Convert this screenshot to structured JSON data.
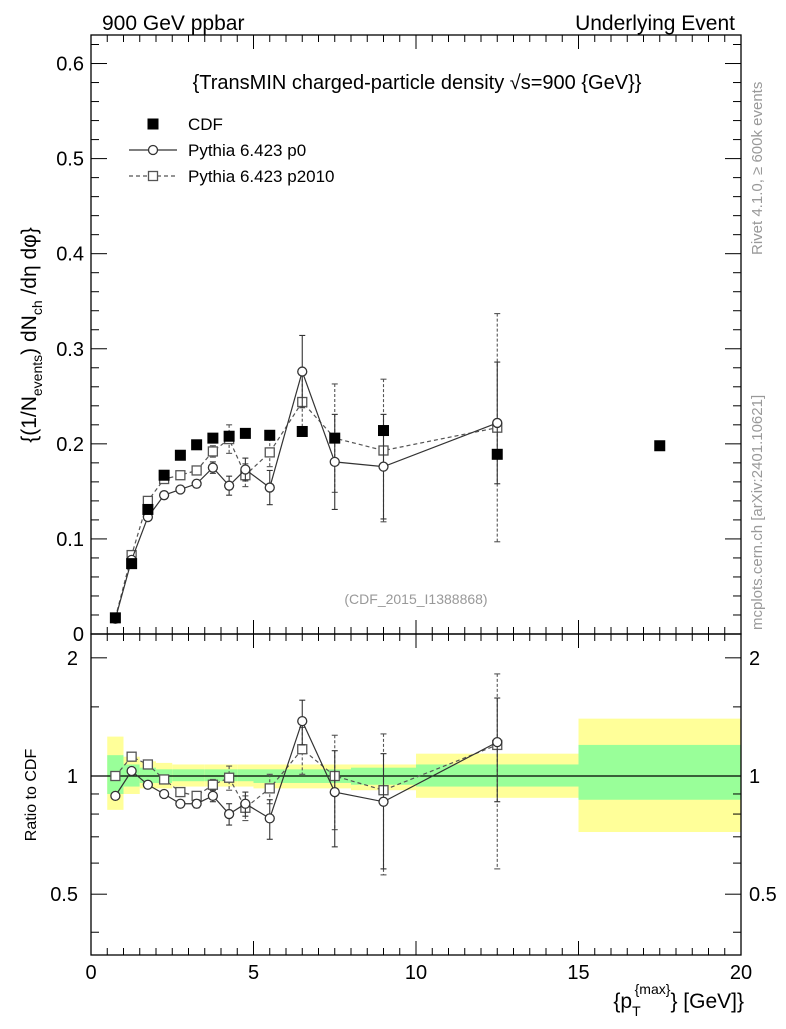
{
  "header": {
    "left": "900 GeV ppbar",
    "right": "Underlying Event"
  },
  "side_text": {
    "rivet": "Rivet 4.1.0, ≥ 600k events",
    "mcplots": "mcplots.cern.ch [arXiv:2401.10621]"
  },
  "colors": {
    "cdf": "#000000",
    "p0": "#333333",
    "p2010": "#555555",
    "band_outer": "#ffff99",
    "band_inner": "#99ff99",
    "watermark": "#999999"
  },
  "chart_data": {
    "type": "scatter",
    "title": "{TransMIN charged-particle density √s=900 {GeV}}",
    "watermark": "(CDF_2015_I1388868)",
    "xlabel": "{p_T^{max}} [GeV]",
    "xlabel_main": "{p",
    "xlabel_sub": "T",
    "xlabel_sup": "{max}",
    "xlabel_tail": "} [GeV]}",
    "ylabel": "{(1/N_events) dN_ch /dη dφ}",
    "ylabel_parts": {
      "a": "{(1/N",
      "b": "events",
      "c": ") dN",
      "d": "ch",
      "e": " /dη dφ}"
    },
    "ratio_ylabel": "Ratio to CDF",
    "xlim": [
      0,
      20
    ],
    "ylim": [
      0,
      0.63
    ],
    "ratio_ylim": [
      0.35,
      2.3
    ],
    "x_ticks": [
      0,
      5,
      10,
      15,
      20
    ],
    "x_tick_labels": [
      "0",
      "5",
      "10",
      "15",
      "20"
    ],
    "y_ticks": [
      0,
      0.1,
      0.2,
      0.3,
      0.4,
      0.5,
      0.6
    ],
    "y_tick_labels": [
      "0",
      "0.1",
      "0.2",
      "0.3",
      "0.4",
      "0.5",
      "0.6"
    ],
    "ratio_ticks": [
      0.5,
      1,
      2
    ],
    "ratio_tick_labels": [
      "0.5",
      "1",
      "2"
    ],
    "legend": [
      {
        "key": "cdf",
        "label": "CDF"
      },
      {
        "key": "p0",
        "label": "Pythia 6.423 p0"
      },
      {
        "key": "p2010",
        "label": "Pythia 6.423 p2010"
      }
    ],
    "series": [
      {
        "name": "CDF",
        "key": "cdf",
        "x": [
          0.75,
          1.25,
          1.75,
          2.25,
          2.75,
          3.25,
          3.75,
          4.25,
          4.75,
          5.5,
          6.5,
          7.5,
          9.0,
          12.5,
          17.5
        ],
        "y": [
          0.017,
          0.074,
          0.131,
          0.167,
          0.188,
          0.199,
          0.206,
          0.208,
          0.211,
          0.209,
          0.213,
          0.206,
          0.214,
          0.189,
          0.198
        ]
      },
      {
        "name": "Pythia 6.423 p0",
        "key": "p0",
        "x": [
          0.75,
          1.25,
          1.75,
          2.25,
          2.75,
          3.25,
          3.75,
          4.25,
          4.75,
          5.5,
          6.5,
          7.5,
          9.0,
          12.5
        ],
        "y": [
          0.016,
          0.078,
          0.123,
          0.146,
          0.152,
          0.158,
          0.175,
          0.156,
          0.173,
          0.154,
          0.276,
          0.181,
          0.176,
          0.222
        ],
        "err": [
          0.002,
          0.003,
          0.003,
          0.003,
          0.003,
          0.004,
          0.006,
          0.01,
          0.012,
          0.018,
          0.038,
          0.05,
          0.055,
          0.064
        ]
      },
      {
        "name": "Pythia 6.423 p2010",
        "key": "p2010",
        "x": [
          0.75,
          1.25,
          1.75,
          2.25,
          2.75,
          3.25,
          3.75,
          4.25,
          4.75,
          5.5,
          6.5,
          7.5,
          9.0,
          12.5
        ],
        "y": [
          0.017,
          0.083,
          0.14,
          0.163,
          0.167,
          0.172,
          0.192,
          0.205,
          0.167,
          0.191,
          0.244,
          0.206,
          0.193,
          0.217
        ],
        "err": [
          0.002,
          0.003,
          0.003,
          0.003,
          0.003,
          0.004,
          0.006,
          0.015,
          0.012,
          0.015,
          0.035,
          0.057,
          0.075,
          0.12
        ]
      }
    ],
    "ratio_series": [
      {
        "key": "p0",
        "x": [
          0.75,
          1.25,
          1.75,
          2.25,
          2.75,
          3.25,
          3.75,
          4.25,
          4.75,
          5.5,
          6.5,
          7.5,
          9.0,
          12.5
        ],
        "y": [
          0.89,
          1.03,
          0.95,
          0.9,
          0.85,
          0.85,
          0.89,
          0.8,
          0.85,
          0.78,
          1.38,
          0.91,
          0.86,
          1.22
        ],
        "err": [
          0.01,
          0.015,
          0.015,
          0.015,
          0.015,
          0.02,
          0.03,
          0.05,
          0.06,
          0.09,
          0.18,
          0.25,
          0.28,
          0.36
        ]
      },
      {
        "key": "p2010",
        "x": [
          0.75,
          1.25,
          1.75,
          2.25,
          2.75,
          3.25,
          3.75,
          4.25,
          4.75,
          5.5,
          6.5,
          7.5,
          9.0,
          12.5
        ],
        "y": [
          1.0,
          1.12,
          1.07,
          0.98,
          0.91,
          0.89,
          0.95,
          0.99,
          0.83,
          0.93,
          1.17,
          1.0,
          0.92,
          1.2
        ],
        "err": [
          0.01,
          0.015,
          0.015,
          0.015,
          0.015,
          0.02,
          0.03,
          0.07,
          0.06,
          0.08,
          0.16,
          0.27,
          0.36,
          0.62
        ]
      }
    ],
    "ratio_bands": {
      "x_edges": [
        0.5,
        1.0,
        1.5,
        2.0,
        2.5,
        3.0,
        3.5,
        4.0,
        4.5,
        5.0,
        6.0,
        7.0,
        8.0,
        10.0,
        15.0,
        20.0
      ],
      "outer": [
        [
          0.82,
          1.26
        ],
        [
          0.9,
          1.12
        ],
        [
          0.93,
          1.09
        ],
        [
          0.93,
          1.08
        ],
        [
          0.94,
          1.07
        ],
        [
          0.94,
          1.07
        ],
        [
          0.94,
          1.07
        ],
        [
          0.94,
          1.07
        ],
        [
          0.94,
          1.07
        ],
        [
          0.93,
          1.07
        ],
        [
          0.93,
          1.07
        ],
        [
          0.93,
          1.07
        ],
        [
          0.92,
          1.07
        ],
        [
          0.88,
          1.14
        ],
        [
          0.72,
          1.4
        ]
      ],
      "inner": [
        [
          0.9,
          1.13
        ],
        [
          0.94,
          1.07
        ],
        [
          0.96,
          1.05
        ],
        [
          0.96,
          1.04
        ],
        [
          0.97,
          1.04
        ],
        [
          0.97,
          1.04
        ],
        [
          0.97,
          1.04
        ],
        [
          0.97,
          1.04
        ],
        [
          0.97,
          1.04
        ],
        [
          0.96,
          1.04
        ],
        [
          0.96,
          1.04
        ],
        [
          0.96,
          1.04
        ],
        [
          0.95,
          1.05
        ],
        [
          0.94,
          1.07
        ],
        [
          0.87,
          1.2
        ]
      ]
    }
  }
}
